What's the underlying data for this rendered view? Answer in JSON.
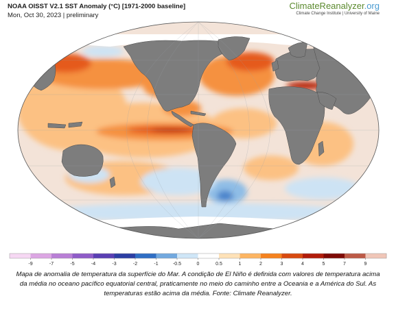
{
  "header": {
    "title": "NOAA OISST V2.1 SST Anomaly (°C) [1971-2000 baseline]",
    "subtitle": "Mon, Oct 30, 2023 | preliminary"
  },
  "brand": {
    "name_main": "ClimateReanalyzer",
    "name_suffix": ".org",
    "tagline": "Climate Change Institute | University of Maine"
  },
  "colorbar": {
    "ticks": [
      "-9",
      "-7",
      "-5",
      "-4",
      "-3",
      "-2",
      "-1",
      "-0.5",
      "0",
      "0.5",
      "1",
      "2",
      "3",
      "4",
      "5",
      "7",
      "9"
    ],
    "colors": [
      "#f6d8f3",
      "#dca6e3",
      "#b97fd6",
      "#8f5cc8",
      "#5a3fb3",
      "#2c3ea3",
      "#2f6ec4",
      "#72a9df",
      "#cfe6f7",
      "#ffffff",
      "#ffe2b8",
      "#fdb562",
      "#f5821e",
      "#d84a10",
      "#b11c0a",
      "#7e0a06",
      "#bd5a47",
      "#f0c6b8"
    ]
  },
  "map": {
    "colors": {
      "ocean_neutral": "#f3e3d8",
      "land": "#7d7d7d",
      "ice": "#ffffff",
      "warm_light": "#fcc183",
      "warm_mid": "#f59140",
      "warm_strong": "#e55a1c",
      "warm_extreme": "#b82a10",
      "cool_light": "#cde3f4",
      "cool_mid": "#8fbde6",
      "cool_strong": "#4e86cc"
    }
  },
  "caption": "Mapa de anomalia de temperatura da superfície do Mar. A condição de El Niño é definida com valores de temperatura acima da média no oceano pacífico equatorial central, praticamente no meio do caminho entre a Oceania e a América do Sul. As temperaturas estão acima da média. Fonte: Climate Reanalyzer."
}
